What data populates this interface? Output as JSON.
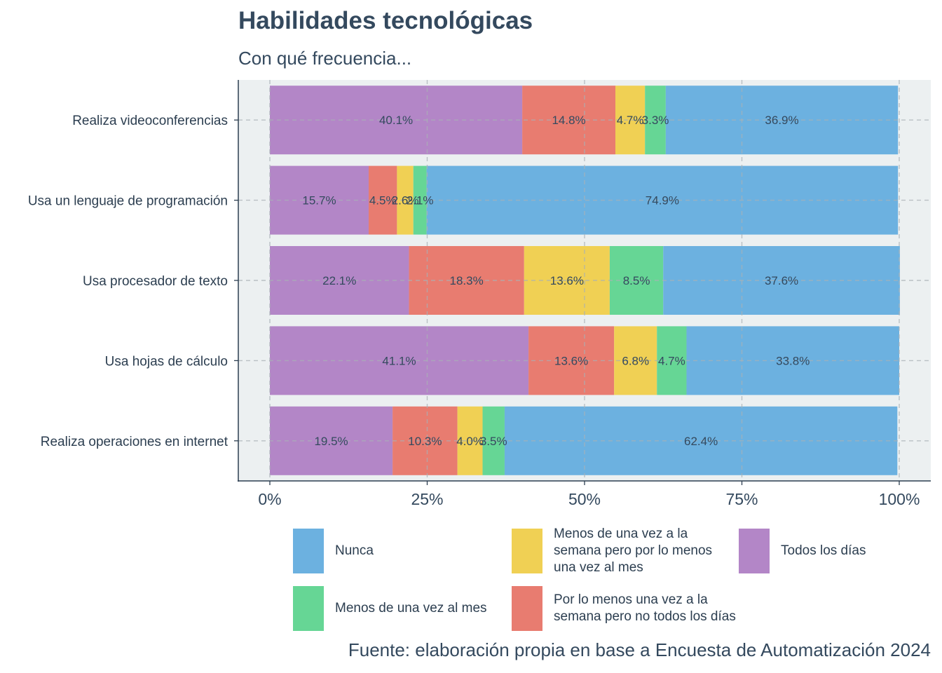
{
  "chart_data": {
    "type": "bar",
    "orientation": "horizontal",
    "stacked": true,
    "title": "Habilidades tecnológicas",
    "subtitle": "Con qué frecuencia...",
    "caption": "Fuente: elaboración propia en base a Encuesta de Automatización 2024",
    "categories": [
      "Realiza videoconferencias",
      "Usa un lenguaje de programación",
      "Usa procesador de texto",
      "Usa hojas de cálculo",
      "Realiza operaciones en internet"
    ],
    "series": [
      {
        "name": "Todos los días",
        "color": "#b386c7",
        "values": [
          40.1,
          15.7,
          22.1,
          41.1,
          19.5
        ],
        "labels": [
          "40.1%",
          "15.7%",
          "22.1%",
          "41.1%",
          "19.5%"
        ]
      },
      {
        "name": "Por lo menos una vez a la semana pero no todos los días",
        "color": "#e87c70",
        "values": [
          14.8,
          4.5,
          18.3,
          13.6,
          10.3
        ],
        "labels": [
          "14.8%",
          "4.5%",
          "18.3%",
          "13.6%",
          "10.3%"
        ]
      },
      {
        "name": "Menos de una vez a la semana pero por lo menos una vez al mes",
        "color": "#f0d054",
        "values": [
          4.7,
          2.6,
          13.6,
          6.8,
          4.0
        ],
        "labels": [
          "4.7%",
          "2.6%",
          "13.6%",
          "6.8%",
          "4.0%"
        ]
      },
      {
        "name": "Menos de una vez al mes",
        "color": "#66d695",
        "values": [
          3.3,
          2.1,
          8.5,
          4.7,
          3.5
        ],
        "labels": [
          "3.3%",
          "2.1%",
          "8.5%",
          "4.7%",
          "3.5%"
        ]
      },
      {
        "name": "Nunca",
        "color": "#6cb1e0",
        "values": [
          36.9,
          74.9,
          37.6,
          33.8,
          62.4
        ],
        "labels": [
          "36.9%",
          "74.9%",
          "37.6%",
          "33.8%",
          "62.4%"
        ]
      }
    ],
    "xlim": [
      0,
      100
    ],
    "x_ticks": [
      0,
      25,
      50,
      75,
      100
    ],
    "x_tick_labels": [
      "0%",
      "25%",
      "50%",
      "75%",
      "100%"
    ],
    "grid": true,
    "panel_background": "#ecf0f1",
    "legend_position": "bottom",
    "legend": [
      {
        "label": "Nunca",
        "color": "#6cb1e0"
      },
      {
        "label": "Menos de una vez a la semana pero por lo menos una vez al mes",
        "color": "#f0d054"
      },
      {
        "label": "Todos los días",
        "color": "#b386c7"
      },
      {
        "label": "Menos de una vez al mes",
        "color": "#66d695"
      },
      {
        "label": "Por lo menos una vez a la semana pero no todos los días",
        "color": "#e87c70"
      }
    ]
  }
}
